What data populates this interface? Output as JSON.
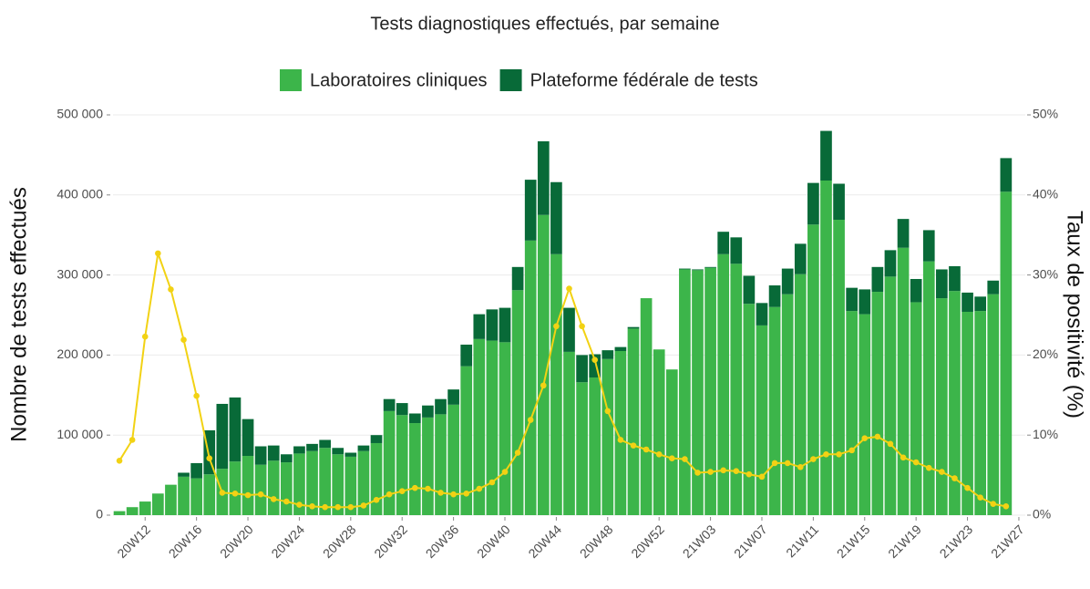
{
  "chart_data": {
    "type": "bar_line",
    "title": "Tests diagnostiques effectués, par semaine",
    "ylabel": "Nombre de tests effectués",
    "y2label": "Taux de positivité (%)",
    "legend": "top",
    "grid": true,
    "categories": [
      null,
      null,
      "20W12",
      null,
      null,
      null,
      "20W16",
      null,
      null,
      null,
      "20W20",
      null,
      null,
      null,
      "20W24",
      null,
      null,
      null,
      "20W28",
      null,
      null,
      null,
      "20W32",
      null,
      null,
      null,
      "20W36",
      null,
      null,
      null,
      "20W40",
      null,
      null,
      null,
      "20W44",
      null,
      null,
      null,
      "20W48",
      null,
      null,
      null,
      "20W52",
      null,
      null,
      null,
      "21W03",
      null,
      null,
      null,
      "21W07",
      null,
      null,
      null,
      "21W11",
      null,
      null,
      null,
      "21W15",
      null,
      null,
      null,
      "21W19",
      null,
      null,
      null,
      "21W23",
      null,
      null,
      null,
      "21W27"
    ],
    "series": [
      {
        "name": "Laboratoires cliniques",
        "color": "#3cb54a",
        "values": [
          5000,
          10000,
          17000,
          27000,
          38000,
          48000,
          46000,
          51000,
          58000,
          67000,
          74000,
          63000,
          68000,
          66000,
          77000,
          80000,
          84000,
          76000,
          73000,
          80000,
          90000,
          130000,
          125000,
          115000,
          122000,
          126000,
          138000,
          186000,
          220000,
          218000,
          216000,
          281000,
          343000,
          375000,
          326000,
          204000,
          166000,
          172000,
          195000,
          205000,
          233000,
          271000,
          207000,
          182000,
          307000,
          306000,
          309000,
          326000,
          314000,
          264000,
          237000,
          260000,
          276000,
          301000,
          363000,
          418000,
          369000,
          255000,
          251000,
          279000,
          298000,
          334000,
          266000,
          317000,
          271000,
          280000,
          254000,
          255000,
          276000,
          404000,
          null
        ]
      },
      {
        "name": "Plateforme fédérale de tests",
        "color": "#086a38",
        "values": [
          0,
          0,
          0,
          0,
          0,
          5000,
          19000,
          55000,
          81000,
          80000,
          46000,
          23000,
          19000,
          10000,
          9000,
          9000,
          10000,
          8000,
          5000,
          7000,
          10000,
          15000,
          15000,
          12000,
          15000,
          19000,
          19000,
          27000,
          31000,
          39000,
          43000,
          29000,
          76000,
          92000,
          90000,
          55000,
          34000,
          29000,
          11000,
          5000,
          2000,
          0,
          0,
          0,
          1000,
          1000,
          1000,
          28000,
          33000,
          35000,
          28000,
          27000,
          32000,
          38000,
          52000,
          62000,
          45000,
          29000,
          31000,
          31000,
          33000,
          36000,
          29000,
          39000,
          36000,
          31000,
          24000,
          18000,
          17000,
          42000,
          null
        ]
      },
      {
        "name": "Taux de positivité",
        "color": "#f2d214",
        "axis": "y2",
        "values": [
          6.8,
          9.4,
          22.3,
          32.7,
          28.2,
          21.9,
          14.9,
          7.1,
          2.8,
          2.7,
          2.5,
          2.6,
          2.0,
          1.7,
          1.3,
          1.1,
          1.0,
          1.0,
          1.0,
          1.2,
          1.9,
          2.6,
          3.0,
          3.4,
          3.3,
          2.8,
          2.6,
          2.7,
          3.3,
          4.1,
          5.4,
          7.8,
          11.9,
          16.2,
          23.6,
          28.3,
          23.6,
          19.4,
          13.0,
          9.4,
          8.7,
          8.2,
          7.6,
          7.1,
          7.0,
          5.3,
          5.4,
          5.6,
          5.5,
          5.1,
          4.8,
          6.5,
          6.5,
          6.0,
          7.0,
          7.6,
          7.6,
          8.1,
          9.6,
          9.8,
          8.9,
          7.2,
          6.6,
          5.9,
          5.4,
          4.6,
          3.4,
          2.2,
          1.4,
          1.1,
          null
        ]
      }
    ],
    "ylim": [
      0,
      500000
    ],
    "yticks": [
      {
        "value": 0,
        "label": "0"
      },
      {
        "value": 100000,
        "label": "100 000"
      },
      {
        "value": 200000,
        "label": "200 000"
      },
      {
        "value": 300000,
        "label": "300 000"
      },
      {
        "value": 400000,
        "label": "400 000"
      },
      {
        "value": 500000,
        "label": "500 000"
      }
    ],
    "y2lim": [
      0,
      50
    ],
    "y2ticks": [
      {
        "value": 0,
        "label": "0%"
      },
      {
        "value": 10,
        "label": "10%"
      },
      {
        "value": 20,
        "label": "20%"
      },
      {
        "value": 30,
        "label": "30%"
      },
      {
        "value": 40,
        "label": "40%"
      },
      {
        "value": 50,
        "label": "50%"
      }
    ]
  }
}
